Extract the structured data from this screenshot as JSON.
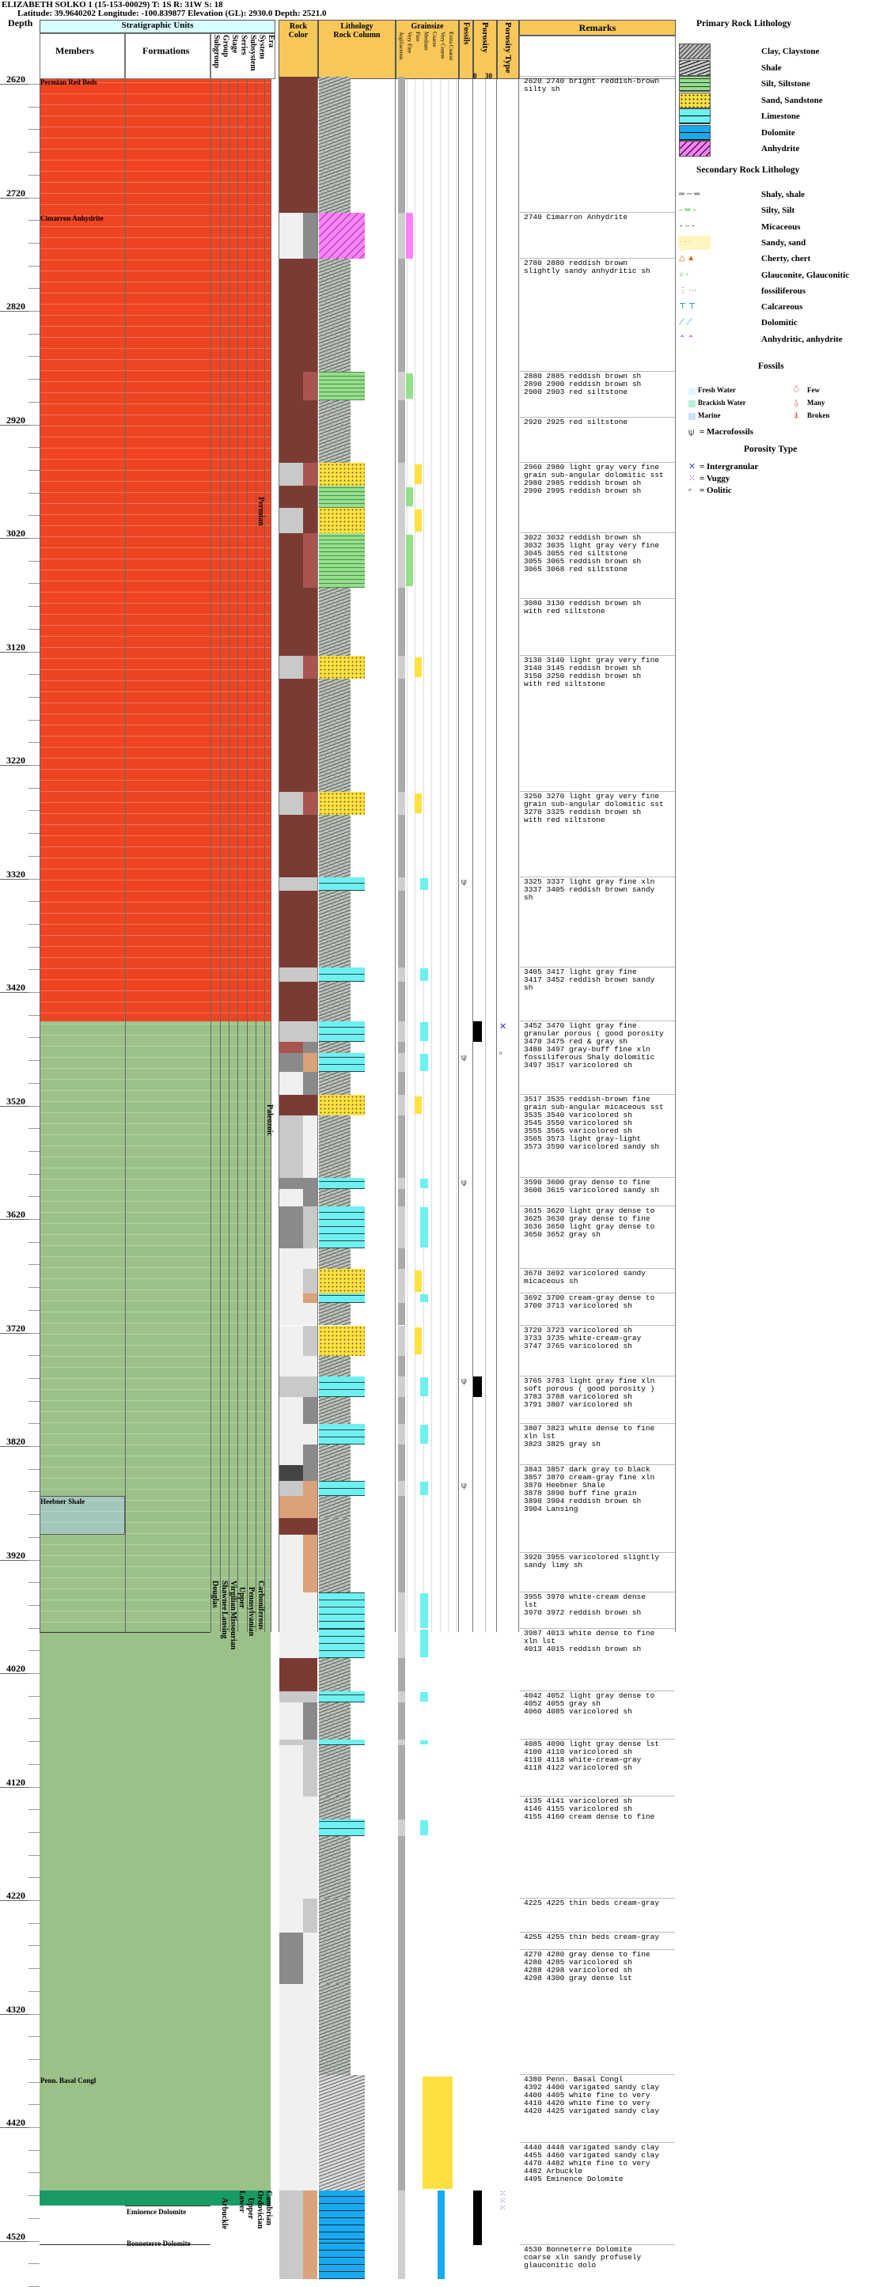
{
  "header": {
    "line1": "ELIZABETH SOLKO 1 (15-153-00029) T: 1S R: 31W S: 18",
    "line2": "Latitude: 39.9640202 Longitude: -100.839877 Elevation (GL): 2930.0 Depth: 2521.0"
  },
  "columns": {
    "depth": "Depth",
    "strat": "Stratigraphic Units",
    "members": "Members",
    "formations": "Formations",
    "vertical": [
      "Subgroup",
      "Group",
      "Stage",
      "Series",
      "Subsystem",
      "System",
      "Era"
    ],
    "rock_color": "Rock Color",
    "lithology": "Lithology",
    "rock_column": "Rock Column",
    "grainsize": "Grainsize",
    "grainsize_sub": [
      "Argillaceous",
      "Very Fine",
      "Fine",
      "Medium",
      "Coarse",
      "Very Coarse",
      "Extra Coarse"
    ],
    "fossils": "Fossils",
    "porosity": "Porosity",
    "porosity_scale": [
      "0",
      "30"
    ],
    "porosity_type": "Porosity Type",
    "remarks": "Remarks"
  },
  "depth_labels": [
    "2620",
    "2720",
    "2820",
    "2920",
    "3020",
    "3120",
    "3220",
    "3320",
    "3420",
    "3520",
    "3620",
    "3720",
    "3820",
    "3920",
    "4020",
    "4120",
    "4220",
    "4320",
    "4420",
    "4520"
  ],
  "members": [
    "Permian Red Beds",
    "Cimarron Anhydrite",
    "Heebner Shale",
    "Penn. Basal Congl",
    "Eminence Dolomite",
    "Bonneterre Dolomite"
  ],
  "formations": [
    "Eminence Dolomite",
    "Bonneterre Dolomite"
  ],
  "units": {
    "permian": "Permian",
    "paleozoic": "Paleozoic",
    "carboniferous": "Carboniferous",
    "pennsylvanian": "Pennsylvanian",
    "upper_penn": "Upper",
    "virgilian": "Virgilian",
    "missourian": "Missourian",
    "shawnee": "Shawnee",
    "douglas": "Douglas",
    "lansing": "Lansing",
    "ordovician": "Ordovician",
    "lower": "Lower",
    "cambrian": "Cambrian",
    "upper_cam": "Upper",
    "arbuckle": "Arbuckle"
  },
  "remarks": [
    "2620 2740 bright reddish-brown\nsilty sh",
    "2740 Cimarron Anhydrite",
    "2780 2880 reddish brown\nslightly sandy anhydritic sh",
    "2880 2885 reddish brown sh\n2890 2900 reddish brown sh\n2900 2903 red siltstone",
    "2920 2925 red siltstone",
    "2960 2980 light gray very fine\ngrain sub-angular dolomitic sst\n2980 2985 reddish brown sh\n2990 2995 reddish brown sh",
    "3022 3032 reddish brown sh\n3032 3035 light gray very fine\n3045 3055 red siltstone\n3055 3065 reddish brown sh\n3065 3068 red siltstone",
    "3080 3130 reddish brown sh\nwith red siltstone",
    "3130 3140 light gray very fine\n3140 3145 reddish brown sh\n3150 3250 reddish brown sh\nwith red siltstone",
    "3250 3270 light gray very fine\ngrain sub-angular dolomitic sst\n3270 3325 reddish brown sh\nwith red siltstone",
    "3325 3337 light gray fine xln\n3337 3405 reddish brown sandy\nsh",
    "3405 3417 light gray fine\n3417 3452 reddish brown sandy\nsh",
    "3452 3470 light gray fine\ngranular porous ( good porosity\n3470 3475 red & gray sh\n3480 3497 gray-buff fine xln\nfossiliferous Shaly dolomitic\n3497 3517 varicolored sh",
    "3517 3535 reddish-brown fine\ngrain sub-angular micaceous sst\n3535 3540 varicolored sh\n3545 3550 varicolored sh\n3555 3565 varicolored sh\n3565 3573 light gray-light\n3573 3590 varicolored sandy sh",
    "3590 3600 gray dense to fine\n3600 3615 varicolored sandy sh",
    "3615 3620 light gray dense to\n3625 3630 gray dense to fine\n3636 3650 light gray dense to\n3650 3652 gray sh",
    "3670 3692 varicolored sandy\nmicaceous sh",
    "3692 3700 cream-gray dense to\n3700 3713 varicolored sh",
    "3720 3723 varicolored sh\n3733 3735 white-cream-gray\n3747 3765 varicolored sh",
    "3765 3783 light gray fine xln\nsoft porous ( good porosity )\n3783 3788 varicolored sh\n3791 3807 varicolored sh",
    "3807 3823 white dense to fine\nxln lst\n3823 3825 gray sh",
    "3843 3857 dark gray to black\n3857 3870 cream-gray fine xln\n3870 Heebner Shale\n3878 3890 buff fine grain\n3890 3904 reddish brown sh\n3904 Lansing",
    "3920 3955 varicolored slightly\nsandy limy sh",
    "3955 3970 white-cream dense\nlst\n3970 3972 reddish brown sh",
    "3987 4013 white dense to fine\nxln lst\n4013 4015 reddish brown sh",
    "4042 4052 light gray dense to\n4052 4055 gray sh\n4060 4085 varicolored sh",
    "4085 4090 light gray dense lst\n4100 4110 varicolored sh\n4110 4118 white-cream-gray\n4118 4122 varicolored sh",
    "4135 4141 varicolored sh\n4146 4155 varicolored sh\n4155 4160 cream dense to fine",
    "4225 4225 thin beds cream-gray",
    "4255 4255 thin beds cream-gray",
    "4270 4280 gray dense to fine\n4280 4285 varicolored sh\n4288 4298 varicolored sh\n4298 4300 gray dense lst",
    "4380 Penn. Basal Congl\n4392 4400 varigated sandy clay\n4400 4405 white fine to very\n4410 4420 white fine to very\n4420 4425 varigated sandy clay",
    "4440 4448 varigated sandy clay\n4455 4460 varigated sandy clay\n4470 4482 white fine to very\n4482 Arbuckle\n4495 Eminence Dolomite",
    "4530 Bonneterre Dolomite\ncoarse xln sandy profusely\nglauconitic dolo"
  ],
  "legend": {
    "primary_title": "Primary Rock Lithology",
    "primary": [
      "Clay, Claystone",
      "Shale",
      "Silt, Siltstone",
      "Sand, Sandstone",
      "Limestone",
      "Dolomite",
      "Anhydrite"
    ],
    "secondary_title": "Secondary Rock Lithology",
    "secondary": [
      "Shaly, shale",
      "Silty, Silt",
      "Micaceous",
      "Sandy, sand",
      "Cherty, chert",
      "Glauconite, Glauconitic",
      "fossiliferous",
      "Calcareous",
      "Dolomitic",
      "Anhydritic, anhydrite"
    ],
    "fossils_title": "Fossils",
    "fossils_left": [
      "Fresh Water",
      "Brackish Water",
      "Marine"
    ],
    "fossils_right": [
      "Few",
      "Many",
      "Broken"
    ],
    "macro": "= Macrofossils",
    "porosity_title": "Porosity Type",
    "porosity": [
      "= Intergranular",
      "= Vuggy",
      "= Oolitic"
    ]
  },
  "colors": {
    "red_beds": "#ef4423",
    "green": "#9bc189",
    "light_green": "#b5dd9c",
    "dark_green": "#1a9a64",
    "header_orange": "#f7c75a",
    "header_cyan": "#d8ffff",
    "limestone": "#6ff0f0",
    "dolomite": "#1aa9f0",
    "anhydrite": "#ff80ff",
    "sand": "#ffe040",
    "reddish_brown": "#7a3b34"
  }
}
